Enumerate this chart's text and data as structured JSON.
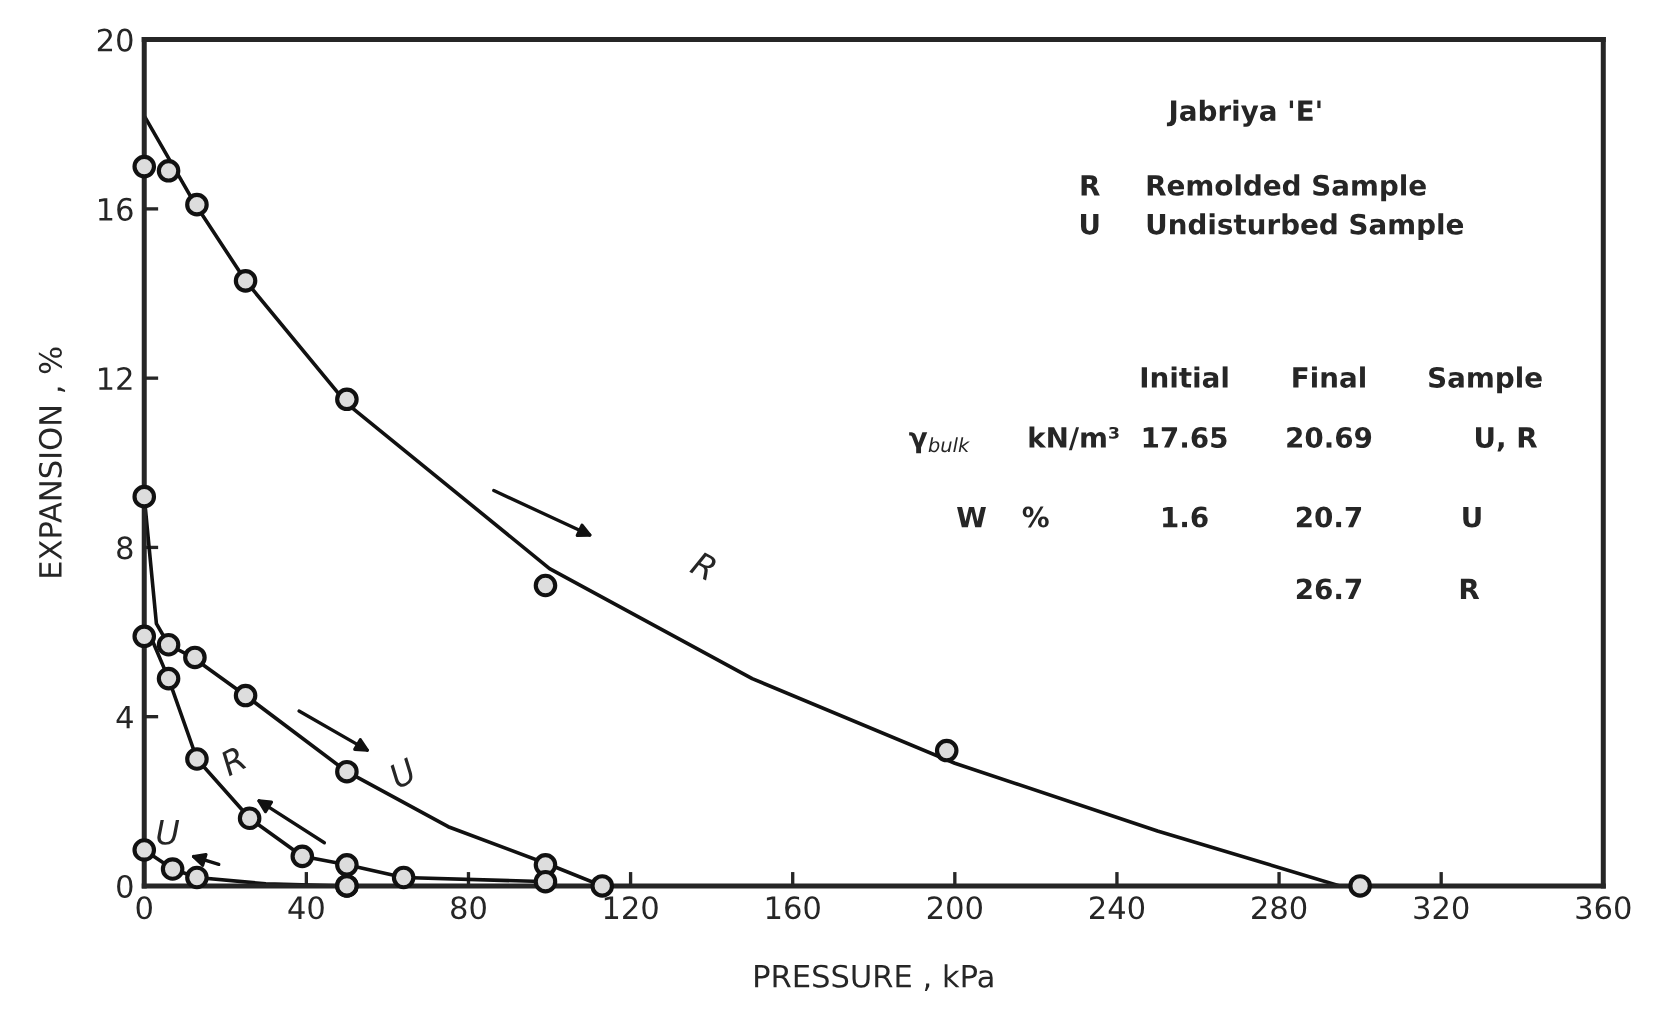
{
  "chart_data": {
    "type": "scatter",
    "xlabel": "PRESSURE , kPa",
    "ylabel": "EXPANSION , %",
    "xlim": [
      0,
      360
    ],
    "xticks": [
      0,
      40,
      80,
      120,
      160,
      200,
      240,
      280,
      320,
      360
    ],
    "ylim": [
      0,
      20
    ],
    "yticks": [
      0,
      4,
      8,
      12,
      16,
      20
    ],
    "grid": false,
    "marker": "circle",
    "series": [
      {
        "type": "line",
        "marker": "none",
        "color": "#111111",
        "x": [
          0,
          12,
          25,
          50,
          100,
          150,
          200,
          250,
          295
        ],
        "values": [
          18.2,
          16.2,
          14.3,
          11.4,
          7.5,
          4.9,
          2.9,
          1.3,
          0
        ]
      },
      {
        "color": "#111111",
        "x": [
          0,
          6,
          13,
          25,
          50,
          99,
          198,
          300
        ],
        "values": [
          17.0,
          16.9,
          16.1,
          14.3,
          11.5,
          7.1,
          3.2,
          0
        ]
      },
      {
        "type": "line",
        "marker": "none",
        "color": "#111111",
        "x": [
          0,
          3,
          6,
          12,
          25,
          50,
          75,
          100,
          113
        ],
        "values": [
          9.2,
          6.2,
          5.7,
          5.4,
          4.5,
          2.7,
          1.4,
          0.5,
          0
        ]
      },
      {
        "color": "#111111",
        "x": [
          0,
          0,
          6,
          12.5,
          25,
          50,
          99,
          113
        ],
        "values": [
          9.2,
          5.9,
          5.7,
          5.4,
          4.5,
          2.7,
          0.5,
          0
        ]
      },
      {
        "type": "line",
        "marker": "none",
        "color": "#111111",
        "x": [
          2,
          6,
          13,
          26,
          39,
          50,
          64,
          100
        ],
        "values": [
          5.8,
          4.9,
          3.0,
          1.6,
          0.7,
          0.5,
          0.2,
          0.1
        ]
      },
      {
        "color": "#111111",
        "x": [
          6,
          13,
          26,
          39,
          50,
          64,
          99,
          50
        ],
        "values": [
          4.9,
          3.0,
          1.6,
          0.7,
          0.5,
          0.2,
          0.1,
          0
        ]
      },
      {
        "type": "line",
        "marker": "none",
        "color": "#111111",
        "x": [
          0,
          7,
          13,
          30,
          50
        ],
        "values": [
          0.85,
          0.4,
          0.2,
          0.05,
          0
        ]
      },
      {
        "color": "#111111",
        "x": [
          0,
          7,
          13,
          50
        ],
        "values": [
          0.85,
          0.4,
          0.2,
          0
        ]
      }
    ],
    "annotations": [
      "R",
      "U",
      "R",
      "U",
      "Jabriya 'E'",
      "R",
      "Remolded Sample",
      "U",
      "Undisturbed Sample",
      "Initial",
      "Final",
      "Sample",
      "γ$_{bulk}$",
      "kN/m³",
      "17.65",
      "20.69",
      "U, R",
      "W",
      "%",
      "1.6",
      "20.7",
      "U",
      "26.7",
      "R"
    ]
  }
}
